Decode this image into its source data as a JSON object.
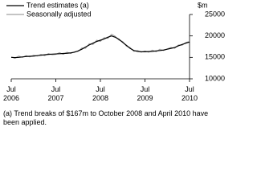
{
  "chart_data": {
    "type": "line",
    "y_label": "$m",
    "footnote": "(a) Trend breaks of $167m to October 2008 and April 2010 have been applied.",
    "categories": [
      "Jul 2006",
      null,
      null,
      null,
      null,
      null,
      null,
      null,
      null,
      null,
      null,
      null,
      "Jul 2007",
      null,
      null,
      null,
      null,
      null,
      null,
      null,
      null,
      null,
      null,
      null,
      "Jul 2008",
      null,
      null,
      null,
      null,
      null,
      null,
      null,
      null,
      null,
      null,
      null,
      "Jul 2009",
      null,
      null,
      null,
      null,
      null,
      null,
      null,
      null,
      null,
      null,
      null,
      "Jul 2010"
    ],
    "series": [
      {
        "name": "Trend estimates (a)",
        "color": "#000000",
        "width": 1.2,
        "values": [
          15000,
          14950,
          15000,
          15100,
          15200,
          15250,
          15300,
          15400,
          15500,
          15600,
          15700,
          15750,
          15800,
          15850,
          15900,
          15950,
          16050,
          16200,
          16500,
          16900,
          17400,
          17900,
          18300,
          18700,
          19000,
          19300,
          19700,
          20000,
          19700,
          19200,
          18500,
          17800,
          17100,
          16600,
          16400,
          16300,
          16300,
          16350,
          16400,
          16500,
          16600,
          16700,
          16900,
          17100,
          17300,
          17700,
          18000,
          18300,
          18600
        ]
      },
      {
        "name": "Seasonally adjusted",
        "color": "#a0a0a0",
        "width": 1,
        "values": [
          15100,
          14800,
          15300,
          15000,
          15400,
          15100,
          15500,
          15300,
          15700,
          15400,
          15900,
          15600,
          15700,
          16100,
          15700,
          16200,
          15900,
          16300,
          16400,
          17200,
          17100,
          18200,
          18000,
          19000,
          18700,
          19600,
          19400,
          20400,
          19900,
          19000,
          18700,
          17600,
          17300,
          16400,
          16600,
          16200,
          16500,
          16200,
          16700,
          16300,
          16900,
          16600,
          17000,
          17300,
          17100,
          17900,
          17800,
          18500,
          18700
        ]
      }
    ],
    "ylim": [
      10000,
      25000
    ],
    "yticks": [
      10000,
      15000,
      20000,
      25000
    ]
  }
}
